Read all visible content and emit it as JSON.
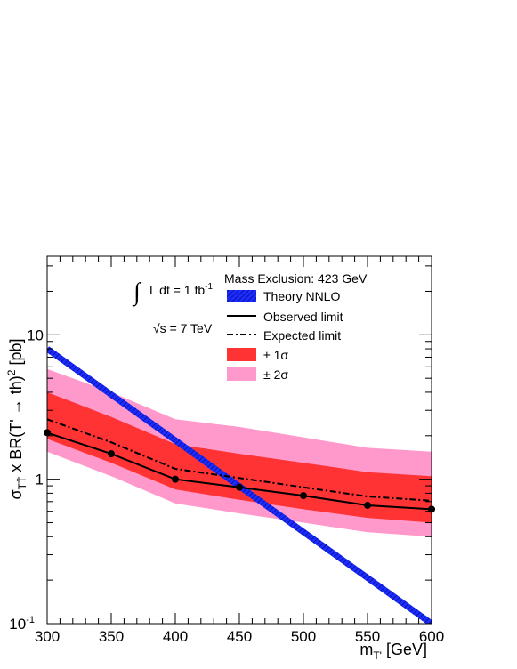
{
  "chart_data": {
    "type": "line",
    "xlabel_main": "m",
    "xlabel_sub": "T'",
    "xlabel_unit": " [GeV]",
    "ylabel": "σTT̄ x BR(T' → th)² [pb]",
    "ylabel_parts": {
      "sigma": "σ",
      "sigma_sub": "TT̄",
      "mid": " x BR(T",
      "prime": "'",
      "arrow": " → ",
      "th": "th)",
      "sup": "2",
      "unit": " [pb]"
    },
    "xlim": [
      300,
      600
    ],
    "ylim": [
      0.1,
      35
    ],
    "yscale": "log",
    "x_ticks": [
      "300",
      "350",
      "400",
      "450",
      "500",
      "550",
      "600"
    ],
    "x_tick_values": [
      300,
      350,
      400,
      450,
      500,
      550,
      600
    ],
    "y_ticks": [
      {
        "value": 0.1,
        "base": "10",
        "exp": "-1"
      },
      {
        "value": 1,
        "base": "1",
        "exp": ""
      },
      {
        "value": 10,
        "base": "10",
        "exp": ""
      }
    ],
    "x": [
      300,
      350,
      400,
      450,
      500,
      550,
      600
    ],
    "series": [
      {
        "name": "Theory NNLO",
        "style": "band-line",
        "color": "#1a2cff",
        "x": [
          300,
          600
        ],
        "values": [
          8.0,
          0.1
        ]
      },
      {
        "name": "Observed limit",
        "style": "solid-markers",
        "color": "#000000",
        "values": [
          2.1,
          1.5,
          1.0,
          0.88,
          0.77,
          0.66,
          0.62
        ]
      },
      {
        "name": "Expected limit",
        "style": "dash-dot",
        "color": "#000000",
        "values": [
          2.6,
          1.8,
          1.18,
          1.02,
          0.88,
          0.76,
          0.71
        ]
      },
      {
        "name": "± 1σ",
        "style": "band",
        "color": "#ff3333",
        "low": [
          1.9,
          1.3,
          0.85,
          0.72,
          0.62,
          0.54,
          0.5
        ],
        "high": [
          4.0,
          2.7,
          1.75,
          1.5,
          1.3,
          1.12,
          1.05
        ]
      },
      {
        "name": "± 2σ",
        "style": "band",
        "color": "#ff99cc",
        "low": [
          1.55,
          1.05,
          0.68,
          0.58,
          0.5,
          0.43,
          0.4
        ],
        "high": [
          5.8,
          4.0,
          2.6,
          2.3,
          1.95,
          1.65,
          1.55
        ]
      }
    ],
    "annotations": {
      "lumi_integral": "∫",
      "lumi_text": "L dt = 1 fb",
      "lumi_exp": "-1",
      "sqrt_s": "√s = 7 TeV",
      "mass_exclusion": "Mass Exclusion: 423 GeV"
    },
    "legend_position": "top-right",
    "grid": false
  },
  "colors": {
    "theory": "#1a2cff",
    "one_sigma": "#ff3333",
    "two_sigma": "#ff99cc",
    "observed": "#000000",
    "expected": "#000000"
  }
}
